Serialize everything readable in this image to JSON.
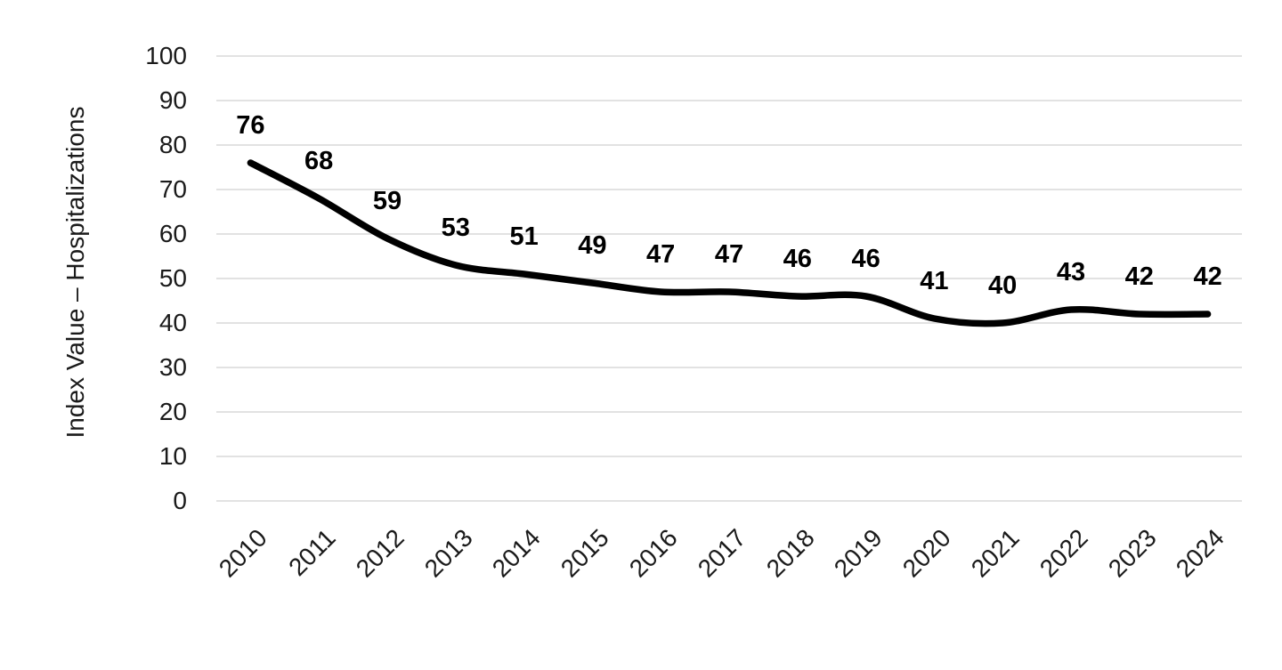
{
  "chart_data": {
    "type": "line",
    "title": "",
    "xlabel": "",
    "ylabel": "Index Value – Hospitalizations",
    "categories": [
      "2010",
      "2011",
      "2012",
      "2013",
      "2014",
      "2015",
      "2016",
      "2017",
      "2018",
      "2019",
      "2020",
      "2021",
      "2022",
      "2023",
      "2024"
    ],
    "values": [
      76,
      68,
      59,
      53,
      51,
      49,
      47,
      47,
      46,
      46,
      41,
      40,
      43,
      42,
      42
    ],
    "data_labels_shown": true,
    "ylim": [
      0,
      100
    ],
    "yticks": [
      0,
      10,
      20,
      30,
      40,
      50,
      60,
      70,
      80,
      90,
      100
    ],
    "grid": "horizontal",
    "legend_position": "none",
    "line_color": "#000000",
    "gridline_color": "#d9d9d9",
    "background_color": "#ffffff",
    "text_color": "#1a1a1a"
  }
}
